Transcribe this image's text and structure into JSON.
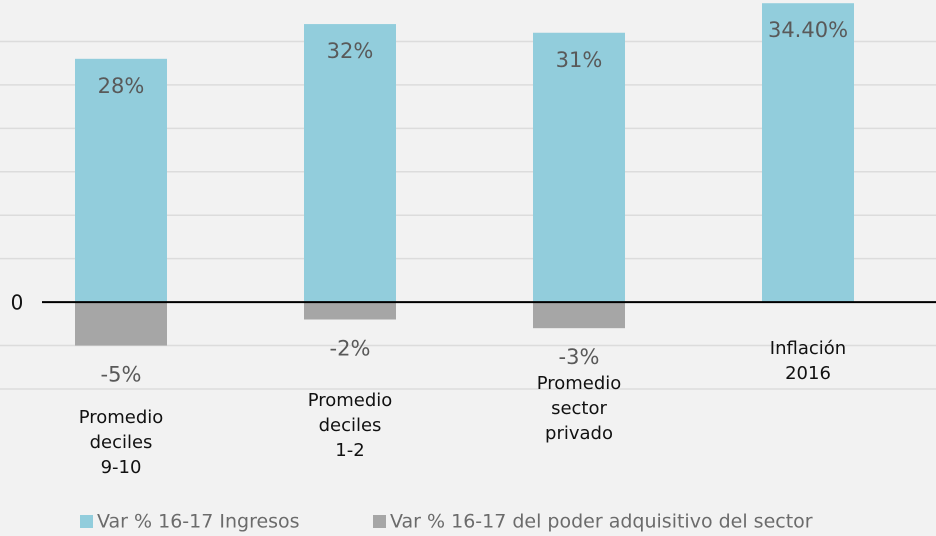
{
  "chart_data": {
    "type": "bar",
    "categories": [
      "Promedio\ndeciles\n9-10",
      "Promedio\ndeciles\n1-2",
      "Promedio\nsector\nprivado",
      "Inflación\n2016"
    ],
    "series": [
      {
        "name": "Var % 16-17 Ingresos",
        "color": "#92cddc",
        "values": [
          28,
          32,
          31,
          34.4
        ],
        "value_labels": [
          "28%",
          "32%",
          "31%",
          "34.40%"
        ]
      },
      {
        "name": "Var % 16-17 del poder adquisitivo del sector",
        "color": "#a6a6a6",
        "values": [
          -5,
          -2,
          -3,
          null
        ],
        "value_labels": [
          "-5%",
          "-2%",
          "-3%",
          null
        ]
      }
    ],
    "ylim": [
      -10,
      35
    ],
    "yticks": [
      0
    ],
    "gridlines": [
      -10,
      -5,
      5,
      10,
      15,
      20,
      25,
      30
    ],
    "grid": true
  }
}
